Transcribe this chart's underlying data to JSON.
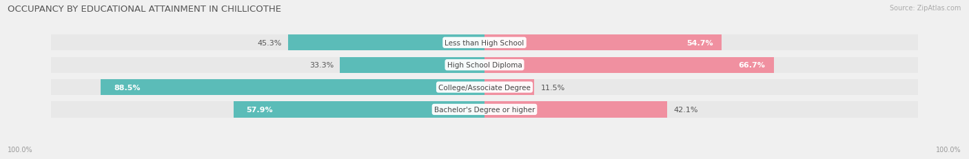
{
  "title": "OCCUPANCY BY EDUCATIONAL ATTAINMENT IN CHILLICOTHE",
  "source": "Source: ZipAtlas.com",
  "categories": [
    "Less than High School",
    "High School Diploma",
    "College/Associate Degree",
    "Bachelor's Degree or higher"
  ],
  "owner_pct": [
    45.3,
    33.3,
    88.5,
    57.9
  ],
  "renter_pct": [
    54.7,
    66.7,
    11.5,
    42.1
  ],
  "owner_color": "#5bbcb8",
  "renter_color": "#f090a0",
  "bg_color": "#f0f0f0",
  "bar_bg_color": "#e8e8e8",
  "bar_height": 0.72,
  "x_left_label": "100.0%",
  "x_right_label": "100.0%",
  "title_fontsize": 9.5,
  "source_fontsize": 7,
  "label_fontsize": 8,
  "cat_fontsize": 7.5
}
